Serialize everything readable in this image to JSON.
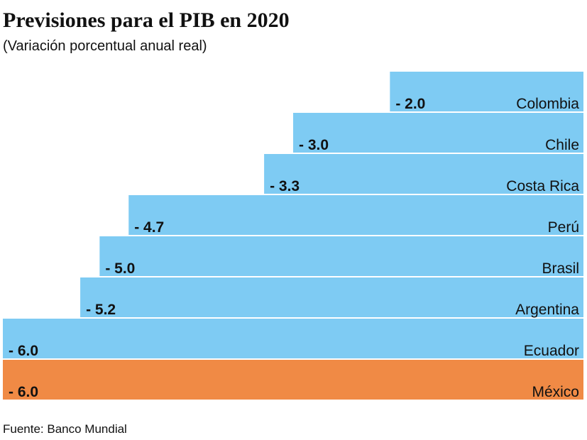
{
  "chart_data": {
    "type": "bar",
    "orientation": "horizontal",
    "title": "Previsiones para el PIB en 2020",
    "subtitle": "(Variación porcentual anual real)",
    "source": "Fuente: Banco Mundial",
    "categories": [
      "Colombia",
      "Chile",
      "Costa Rica",
      "Perú",
      "Brasil",
      "Argentina",
      "Ecuador",
      "México"
    ],
    "values": [
      -2.0,
      -3.0,
      -3.3,
      -4.7,
      -5.0,
      -5.2,
      -6.0,
      -6.0
    ],
    "value_labels": [
      "- 2.0",
      "- 3.0",
      "- 3.3",
      "- 4.7",
      "- 5.0",
      "- 5.2",
      "- 6.0",
      "- 6.0"
    ],
    "colors": [
      "#7ecbf3",
      "#7ecbf3",
      "#7ecbf3",
      "#7ecbf3",
      "#7ecbf3",
      "#7ecbf3",
      "#7ecbf3",
      "#f08a45"
    ],
    "xlim": [
      -6,
      0
    ]
  }
}
